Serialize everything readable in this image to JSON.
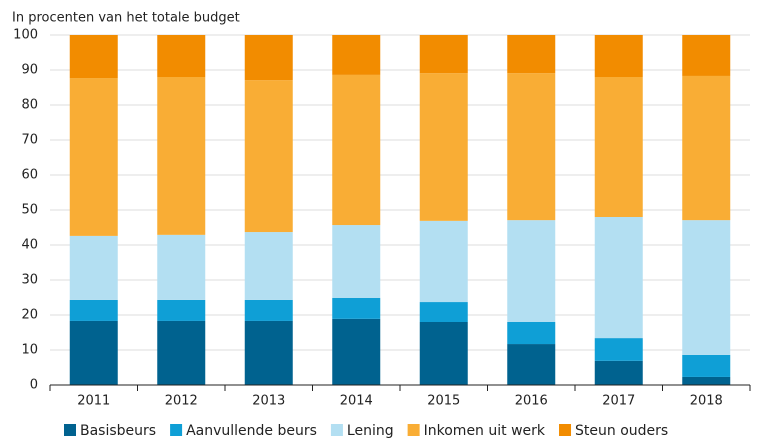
{
  "chart_data": {
    "type": "stacked_bar",
    "title": "In procenten van het totale budget",
    "categories": [
      "2011",
      "2012",
      "2013",
      "2014",
      "2015",
      "2016",
      "2017",
      "2018"
    ],
    "series": [
      {
        "name": "Basisbeurs",
        "color": "#00628f",
        "values": [
          18.3,
          18.3,
          18.3,
          18.9,
          18.0,
          11.7,
          6.9,
          2.3
        ]
      },
      {
        "name": "Aanvullende beurs",
        "color": "#0f9fd6",
        "values": [
          6.0,
          6.0,
          6.0,
          6.0,
          5.7,
          6.3,
          6.5,
          6.3
        ]
      },
      {
        "name": "Lening",
        "color": "#b3dff2",
        "values": [
          18.3,
          18.6,
          19.4,
          20.8,
          23.2,
          29.1,
          34.6,
          38.5
        ]
      },
      {
        "name": "Inkomen uit werk",
        "color": "#f9ad35",
        "values": [
          45.1,
          45.1,
          43.4,
          42.9,
          42.2,
          42.0,
          40.0,
          41.2
        ]
      },
      {
        "name": "Steun ouders",
        "color": "#f28c00",
        "values": [
          12.3,
          12.0,
          12.9,
          11.4,
          10.9,
          10.9,
          12.0,
          11.7
        ]
      }
    ],
    "ylim": [
      0,
      100
    ],
    "yticks": [
      0,
      10,
      20,
      30,
      40,
      50,
      60,
      70,
      80,
      90,
      100
    ],
    "grid": true,
    "legend": "bottom"
  }
}
